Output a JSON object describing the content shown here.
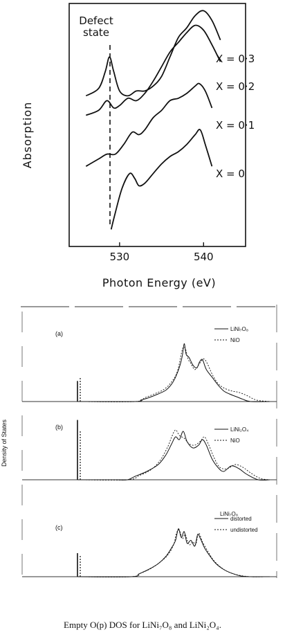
{
  "chart_data": [
    {
      "type": "line",
      "title": "",
      "xlabel": "Photon Energy (eV)",
      "ylabel": "Absorption",
      "xlim": [
        524,
        545
      ],
      "xticks": [
        "530",
        "540"
      ],
      "annotation": {
        "line1": "Defect",
        "line2": "state",
        "x": 528.5
      },
      "series": [
        {
          "name": "X = 0·3",
          "x": [
            526,
            527.5,
            528.3,
            528.8,
            529.3,
            530,
            531,
            532,
            533,
            534,
            535,
            536,
            537,
            538,
            539,
            540,
            541,
            542
          ],
          "y": [
            0.62,
            0.65,
            0.72,
            0.78,
            0.72,
            0.64,
            0.62,
            0.64,
            0.64,
            0.66,
            0.7,
            0.78,
            0.86,
            0.9,
            0.95,
            0.97,
            0.93,
            0.85
          ]
        },
        {
          "name": "X = 0·2",
          "x": [
            526,
            527.5,
            528.5,
            529.3,
            530,
            531,
            532,
            533,
            534,
            535,
            536,
            537,
            538,
            539,
            540,
            541,
            542
          ],
          "y": [
            0.54,
            0.56,
            0.6,
            0.57,
            0.58,
            0.61,
            0.6,
            0.63,
            0.68,
            0.74,
            0.8,
            0.84,
            0.88,
            0.91,
            0.89,
            0.83,
            0.76
          ]
        },
        {
          "name": "X = 0·1",
          "x": [
            526,
            527.5,
            528.5,
            529.5,
            530.5,
            531.5,
            532.3,
            533,
            534,
            535,
            536,
            537,
            538,
            539,
            539.5,
            540.2,
            541
          ],
          "y": [
            0.33,
            0.36,
            0.38,
            0.38,
            0.42,
            0.47,
            0.46,
            0.48,
            0.53,
            0.56,
            0.6,
            0.61,
            0.63,
            0.66,
            0.67,
            0.64,
            0.57
          ]
        },
        {
          "name": "X = 0",
          "x": [
            529.0,
            529.5,
            530.3,
            531.2,
            531.8,
            532.3,
            533,
            534,
            535,
            536,
            537,
            538,
            539,
            539.6,
            540.2,
            541
          ],
          "y": [
            0.07,
            0.14,
            0.24,
            0.3,
            0.28,
            0.25,
            0.26,
            0.3,
            0.34,
            0.37,
            0.39,
            0.42,
            0.46,
            0.48,
            0.42,
            0.33
          ]
        }
      ]
    },
    {
      "type": "line",
      "title": "",
      "ylabel": "Density of States",
      "panels": [
        {
          "label": "(a)",
          "header": "",
          "legend": [
            "LiNi₇O₈",
            "NiO"
          ],
          "solid": [
            [
              0.0,
              0.0
            ],
            [
              0.3,
              0.0
            ],
            [
              0.33,
              0.02
            ],
            [
              0.37,
              0.05
            ],
            [
              0.42,
              0.1
            ],
            [
              0.46,
              0.15
            ],
            [
              0.49,
              0.23
            ],
            [
              0.51,
              0.32
            ],
            [
              0.53,
              0.45
            ],
            [
              0.545,
              0.6
            ],
            [
              0.555,
              0.76
            ],
            [
              0.565,
              0.62
            ],
            [
              0.58,
              0.58
            ],
            [
              0.6,
              0.48
            ],
            [
              0.62,
              0.44
            ],
            [
              0.635,
              0.52
            ],
            [
              0.65,
              0.55
            ],
            [
              0.67,
              0.42
            ],
            [
              0.7,
              0.32
            ],
            [
              0.73,
              0.22
            ],
            [
              0.76,
              0.14
            ],
            [
              0.79,
              0.1
            ],
            [
              0.83,
              0.06
            ],
            [
              0.86,
              0.03
            ],
            [
              0.9,
              0.0
            ],
            [
              1.0,
              0.0
            ]
          ],
          "dashed": [
            [
              0.0,
              0.0
            ],
            [
              0.3,
              0.0
            ],
            [
              0.35,
              0.05
            ],
            [
              0.4,
              0.1
            ],
            [
              0.45,
              0.16
            ],
            [
              0.49,
              0.26
            ],
            [
              0.52,
              0.4
            ],
            [
              0.545,
              0.68
            ],
            [
              0.56,
              0.7
            ],
            [
              0.575,
              0.56
            ],
            [
              0.59,
              0.5
            ],
            [
              0.61,
              0.42
            ],
            [
              0.63,
              0.48
            ],
            [
              0.655,
              0.56
            ],
            [
              0.675,
              0.5
            ],
            [
              0.7,
              0.36
            ],
            [
              0.73,
              0.24
            ],
            [
              0.76,
              0.18
            ],
            [
              0.8,
              0.14
            ],
            [
              0.84,
              0.12
            ],
            [
              0.88,
              0.08
            ],
            [
              0.93,
              0.02
            ],
            [
              1.0,
              0.0
            ]
          ],
          "spike_solid": 0.3,
          "spike_dashed": 0.35
        },
        {
          "label": "(b)",
          "header": "",
          "legend": [
            "LiNi₂O₄",
            "NiO"
          ],
          "solid": [
            [
              0.0,
              0.0
            ],
            [
              0.1,
              0.0
            ],
            [
              0.2,
              0.0
            ],
            [
              0.26,
              0.0
            ],
            [
              0.3,
              0.05
            ],
            [
              0.36,
              0.12
            ],
            [
              0.42,
              0.22
            ],
            [
              0.46,
              0.36
            ],
            [
              0.49,
              0.52
            ],
            [
              0.51,
              0.62
            ],
            [
              0.53,
              0.58
            ],
            [
              0.55,
              0.7
            ],
            [
              0.57,
              0.55
            ],
            [
              0.6,
              0.46
            ],
            [
              0.63,
              0.5
            ],
            [
              0.65,
              0.58
            ],
            [
              0.67,
              0.5
            ],
            [
              0.7,
              0.3
            ],
            [
              0.73,
              0.18
            ],
            [
              0.76,
              0.12
            ],
            [
              0.8,
              0.2
            ],
            [
              0.84,
              0.16
            ],
            [
              0.88,
              0.08
            ],
            [
              0.94,
              0.0
            ],
            [
              1.0,
              0.0
            ]
          ],
          "dashed": [
            [
              0.0,
              0.0
            ],
            [
              0.26,
              0.0
            ],
            [
              0.32,
              0.06
            ],
            [
              0.38,
              0.14
            ],
            [
              0.43,
              0.28
            ],
            [
              0.47,
              0.48
            ],
            [
              0.49,
              0.62
            ],
            [
              0.51,
              0.72
            ],
            [
              0.53,
              0.64
            ],
            [
              0.555,
              0.6
            ],
            [
              0.58,
              0.52
            ],
            [
              0.61,
              0.5
            ],
            [
              0.64,
              0.56
            ],
            [
              0.66,
              0.62
            ],
            [
              0.68,
              0.52
            ],
            [
              0.71,
              0.32
            ],
            [
              0.74,
              0.18
            ],
            [
              0.78,
              0.16
            ],
            [
              0.82,
              0.22
            ],
            [
              0.86,
              0.18
            ],
            [
              0.9,
              0.1
            ],
            [
              0.95,
              0.02
            ],
            [
              1.0,
              0.0
            ]
          ],
          "spike_solid": 0.96,
          "spike_dashed": 0.8
        },
        {
          "label": "(c)",
          "header": "LiNi₇O₈",
          "legend": [
            "distorted",
            "undistorted"
          ],
          "solid": [
            [
              0.0,
              0.0
            ],
            [
              0.28,
              0.0
            ],
            [
              0.32,
              0.04
            ],
            [
              0.37,
              0.1
            ],
            [
              0.42,
              0.18
            ],
            [
              0.46,
              0.28
            ],
            [
              0.49,
              0.4
            ],
            [
              0.51,
              0.5
            ],
            [
              0.525,
              0.66
            ],
            [
              0.54,
              0.54
            ],
            [
              0.555,
              0.62
            ],
            [
              0.57,
              0.46
            ],
            [
              0.59,
              0.5
            ],
            [
              0.61,
              0.42
            ],
            [
              0.625,
              0.58
            ],
            [
              0.64,
              0.52
            ],
            [
              0.66,
              0.4
            ],
            [
              0.69,
              0.28
            ],
            [
              0.72,
              0.18
            ],
            [
              0.76,
              0.1
            ],
            [
              0.8,
              0.05
            ],
            [
              0.85,
              0.01
            ],
            [
              0.9,
              0.0
            ],
            [
              1.0,
              0.0
            ]
          ],
          "dashed": [
            [
              0.0,
              0.0
            ],
            [
              0.28,
              0.0
            ],
            [
              0.33,
              0.05
            ],
            [
              0.38,
              0.11
            ],
            [
              0.43,
              0.2
            ],
            [
              0.47,
              0.3
            ],
            [
              0.5,
              0.44
            ],
            [
              0.515,
              0.6
            ],
            [
              0.53,
              0.64
            ],
            [
              0.545,
              0.52
            ],
            [
              0.56,
              0.58
            ],
            [
              0.58,
              0.44
            ],
            [
              0.6,
              0.48
            ],
            [
              0.615,
              0.44
            ],
            [
              0.63,
              0.6
            ],
            [
              0.65,
              0.48
            ],
            [
              0.68,
              0.34
            ],
            [
              0.71,
              0.22
            ],
            [
              0.75,
              0.12
            ],
            [
              0.79,
              0.06
            ],
            [
              0.84,
              0.02
            ],
            [
              0.9,
              0.0
            ],
            [
              1.0,
              0.0
            ]
          ],
          "spike_solid": 0.36,
          "spike_dashed": 0.32
        }
      ]
    }
  ],
  "caption": "Empty O(p) DOS for LiNi₇O₈ and LiNi₂O₄."
}
